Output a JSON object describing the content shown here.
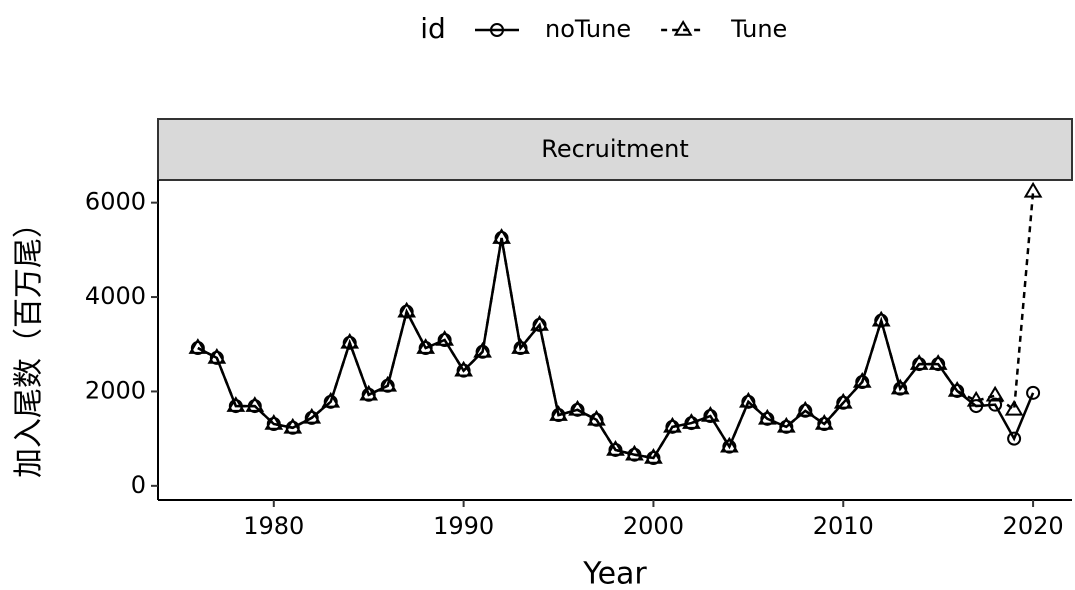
{
  "chart_data": {
    "type": "line",
    "legend_title": "id",
    "legend_position": "top",
    "facet_label": "Recruitment",
    "xlabel": "Year",
    "ylabel": "加入尾数（百万尾）",
    "x": [
      1976,
      1977,
      1978,
      1979,
      1980,
      1981,
      1982,
      1983,
      1984,
      1985,
      1986,
      1987,
      1988,
      1989,
      1990,
      1991,
      1992,
      1993,
      1994,
      1995,
      1996,
      1997,
      1998,
      1999,
      2000,
      2001,
      2002,
      2003,
      2004,
      2005,
      2006,
      2007,
      2008,
      2009,
      2010,
      2011,
      2012,
      2013,
      2014,
      2015,
      2016,
      2017,
      2018,
      2019,
      2020
    ],
    "series": [
      {
        "name": "noTune",
        "color": "#000000",
        "line_style": "solid",
        "marker": "circle",
        "values": [
          2920,
          2710,
          1690,
          1690,
          1310,
          1230,
          1440,
          1780,
          3030,
          1930,
          2120,
          3690,
          2920,
          3090,
          2440,
          2840,
          5250,
          2920,
          3410,
          1500,
          1610,
          1400,
          760,
          660,
          590,
          1250,
          1330,
          1480,
          830,
          1780,
          1420,
          1250,
          1590,
          1310,
          1760,
          2200,
          3500,
          2060,
          2580,
          2580,
          2010,
          1690,
          1720,
          1000,
          1970
        ]
      },
      {
        "name": "Tune",
        "color": "#000000",
        "line_style": "dashed",
        "marker": "triangle",
        "values": [
          2920,
          2710,
          1690,
          1690,
          1310,
          1230,
          1440,
          1780,
          3030,
          1930,
          2120,
          3690,
          2920,
          3090,
          2440,
          2840,
          5250,
          2920,
          3410,
          1500,
          1610,
          1400,
          760,
          660,
          590,
          1250,
          1330,
          1480,
          830,
          1780,
          1420,
          1250,
          1590,
          1310,
          1760,
          2200,
          3500,
          2060,
          2580,
          2580,
          2010,
          1800,
          1910,
          1610,
          6230
        ]
      }
    ],
    "xlim": [
      1973.9,
      2022.05
    ],
    "xticks": [
      1980,
      1990,
      2000,
      2010,
      2020
    ],
    "ylim": [
      -300,
      6480
    ],
    "yticks": [
      0,
      2000,
      4000,
      6000
    ],
    "grid": false
  }
}
